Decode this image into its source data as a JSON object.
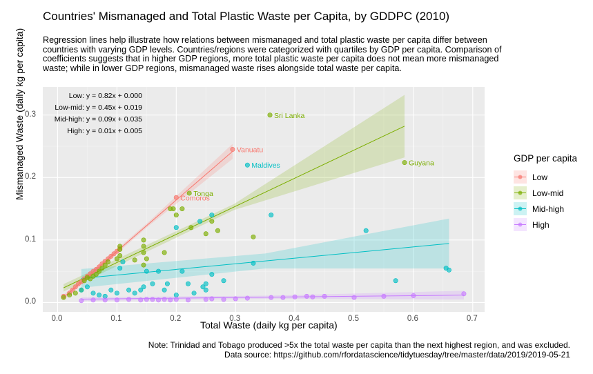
{
  "chart_data": {
    "type": "scatter",
    "title": "Countries' Mismanaged and Total Plastic Waste per Capita, by GDDPC (2010)",
    "subtitle": "Regression lines help illustrate how relations between mismanaged and total plastic waste per capita differ between countries with varying GDP levels. Countries/regions were categorized with quartiles by GDP per capita. Comparison of coefficients suggests that in higher GDP regions, more total plastic waste per capita does not mean more mismanaged waste; while in lower GDP regions, mismanaged waste rises alongside total waste per capita.",
    "xlabel": "Total Waste (daily kg per capita)",
    "ylabel": "Mismanaged Waste (daily kg per capita)",
    "xlim": [
      -0.025,
      0.72
    ],
    "ylim": [
      -0.015,
      0.345
    ],
    "x_ticks": [
      "0.0",
      "0.1",
      "0.2",
      "0.3",
      "0.4",
      "0.5",
      "0.6",
      "0.7"
    ],
    "y_ticks": [
      "0.0",
      "0.1",
      "0.2",
      "0.3"
    ],
    "grid": true,
    "legend_title": "GDP per capita",
    "legend_position": "right",
    "equations": [
      "Low: y = 0.82x + 0.000",
      "Low-mid: y = 0.45x + 0.019",
      "Mid-high: y = 0.09x + 0.035",
      "High: y = 0.01x + 0.005"
    ],
    "series": [
      {
        "name": "Low",
        "color": "#F8766D",
        "fit": {
          "slope": 0.82,
          "intercept": 0.0,
          "x_range": [
            0.01,
            0.295
          ],
          "se": [
            0.004,
            0.012
          ]
        },
        "points": [
          [
            0.01,
            0.01
          ],
          [
            0.02,
            0.015
          ],
          [
            0.025,
            0.02
          ],
          [
            0.03,
            0.025
          ],
          [
            0.035,
            0.03
          ],
          [
            0.04,
            0.033
          ],
          [
            0.045,
            0.038
          ],
          [
            0.05,
            0.042
          ],
          [
            0.055,
            0.046
          ],
          [
            0.06,
            0.05
          ],
          [
            0.065,
            0.053
          ],
          [
            0.07,
            0.057
          ],
          [
            0.075,
            0.062
          ],
          [
            0.08,
            0.066
          ],
          [
            0.085,
            0.07
          ],
          [
            0.09,
            0.074
          ],
          [
            0.095,
            0.078
          ],
          [
            0.1,
            0.082
          ],
          [
            0.105,
            0.087
          ],
          [
            0.2,
            0.168
          ],
          [
            0.295,
            0.245
          ]
        ]
      },
      {
        "name": "Low-mid",
        "color": "#7CAE00",
        "fit": {
          "slope": 0.45,
          "intercept": 0.019,
          "x_range": [
            0.01,
            0.585
          ],
          "se": [
            0.006,
            0.05
          ]
        },
        "points": [
          [
            0.01,
            0.008
          ],
          [
            0.02,
            0.012
          ],
          [
            0.03,
            0.015
          ],
          [
            0.04,
            0.02
          ],
          [
            0.045,
            0.035
          ],
          [
            0.05,
            0.04
          ],
          [
            0.055,
            0.038
          ],
          [
            0.06,
            0.042
          ],
          [
            0.065,
            0.045
          ],
          [
            0.07,
            0.05
          ],
          [
            0.075,
            0.055
          ],
          [
            0.08,
            0.06
          ],
          [
            0.085,
            0.065
          ],
          [
            0.1,
            0.07
          ],
          [
            0.105,
            0.075
          ],
          [
            0.105,
            0.085
          ],
          [
            0.105,
            0.09
          ],
          [
            0.13,
            0.068
          ],
          [
            0.145,
            0.08
          ],
          [
            0.145,
            0.09
          ],
          [
            0.145,
            0.1
          ],
          [
            0.145,
            0.06
          ],
          [
            0.15,
            0.07
          ],
          [
            0.18,
            0.08
          ],
          [
            0.19,
            0.15
          ],
          [
            0.195,
            0.15
          ],
          [
            0.2,
            0.14
          ],
          [
            0.21,
            0.15
          ],
          [
            0.222,
            0.175
          ],
          [
            0.225,
            0.12
          ],
          [
            0.25,
            0.11
          ],
          [
            0.26,
            0.13
          ],
          [
            0.27,
            0.115
          ],
          [
            0.33,
            0.105
          ],
          [
            0.358,
            0.3
          ],
          [
            0.585,
            0.224
          ]
        ]
      },
      {
        "name": "Mid-high",
        "color": "#00BFC4",
        "fit": {
          "slope": 0.09,
          "intercept": 0.035,
          "x_range": [
            0.04,
            0.66
          ],
          "se": [
            0.015,
            0.04
          ]
        },
        "points": [
          [
            0.04,
            0.02
          ],
          [
            0.05,
            0.025
          ],
          [
            0.06,
            0.015
          ],
          [
            0.07,
            0.012
          ],
          [
            0.08,
            0.01
          ],
          [
            0.09,
            0.02
          ],
          [
            0.1,
            0.015
          ],
          [
            0.105,
            0.055
          ],
          [
            0.11,
            0.065
          ],
          [
            0.12,
            0.02
          ],
          [
            0.13,
            0.015
          ],
          [
            0.14,
            0.02
          ],
          [
            0.145,
            0.025
          ],
          [
            0.15,
            0.05
          ],
          [
            0.16,
            0.03
          ],
          [
            0.17,
            0.05
          ],
          [
            0.18,
            0.02
          ],
          [
            0.185,
            0.03
          ],
          [
            0.2,
            0.012
          ],
          [
            0.21,
            0.05
          ],
          [
            0.2,
            0.12
          ],
          [
            0.22,
            0.03
          ],
          [
            0.23,
            0.015
          ],
          [
            0.24,
            0.13
          ],
          [
            0.245,
            0.025
          ],
          [
            0.25,
            0.02
          ],
          [
            0.25,
            0.03
          ],
          [
            0.26,
            0.045
          ],
          [
            0.26,
            0.14
          ],
          [
            0.28,
            0.035
          ],
          [
            0.32,
            0.22
          ],
          [
            0.33,
            0.063
          ],
          [
            0.36,
            0.14
          ],
          [
            0.52,
            0.115
          ],
          [
            0.57,
            0.035
          ],
          [
            0.655,
            0.055
          ],
          [
            0.66,
            0.052
          ]
        ]
      },
      {
        "name": "High",
        "color": "#C77CFF",
        "fit": {
          "slope": 0.01,
          "intercept": 0.005,
          "x_range": [
            0.04,
            0.685
          ],
          "se": [
            0.003,
            0.007
          ]
        },
        "points": [
          [
            0.04,
            0.003
          ],
          [
            0.06,
            0.004
          ],
          [
            0.08,
            0.004
          ],
          [
            0.1,
            0.004
          ],
          [
            0.12,
            0.005
          ],
          [
            0.14,
            0.004
          ],
          [
            0.15,
            0.005
          ],
          [
            0.16,
            0.005
          ],
          [
            0.17,
            0.004
          ],
          [
            0.18,
            0.005
          ],
          [
            0.19,
            0.004
          ],
          [
            0.2,
            0.005
          ],
          [
            0.22,
            0.004
          ],
          [
            0.25,
            0.005
          ],
          [
            0.26,
            0.006
          ],
          [
            0.28,
            0.005
          ],
          [
            0.3,
            0.006
          ],
          [
            0.32,
            0.007
          ],
          [
            0.36,
            0.008
          ],
          [
            0.38,
            0.008
          ],
          [
            0.4,
            0.009
          ],
          [
            0.42,
            0.01
          ],
          [
            0.43,
            0.009
          ],
          [
            0.45,
            0.01
          ],
          [
            0.5,
            0.008
          ],
          [
            0.55,
            0.01
          ],
          [
            0.6,
            0.011
          ],
          [
            0.685,
            0.014
          ]
        ]
      }
    ],
    "annotations": [
      {
        "label": "Sri Lanka",
        "x": 0.358,
        "y": 0.3,
        "series": "Low-mid"
      },
      {
        "label": "Vanuatu",
        "x": 0.295,
        "y": 0.245,
        "series": "Low"
      },
      {
        "label": "Guyana",
        "x": 0.585,
        "y": 0.224,
        "series": "Low-mid"
      },
      {
        "label": "Maldives",
        "x": 0.32,
        "y": 0.22,
        "series": "Mid-high"
      },
      {
        "label": "Tonga",
        "x": 0.222,
        "y": 0.175,
        "series": "Low-mid"
      },
      {
        "label": "Comoros",
        "x": 0.2,
        "y": 0.168,
        "series": "Low"
      }
    ]
  },
  "footnote": {
    "line1": "Note: Trinidad and Tobago produced >5x the total waste per capita than the next highest region, and was excluded.",
    "line2": "Data source: https://github.com/rfordatascience/tidytuesday/tree/master/data/2019/2019-05-21"
  }
}
